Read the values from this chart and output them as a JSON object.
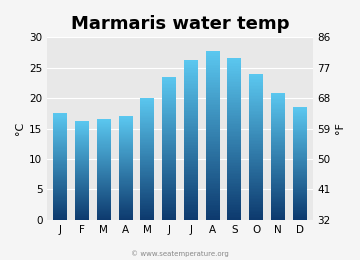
{
  "title": "Marmaris water temp",
  "months": [
    "J",
    "F",
    "M",
    "A",
    "M",
    "J",
    "J",
    "A",
    "S",
    "O",
    "N",
    "D"
  ],
  "values_c": [
    17.5,
    16.3,
    16.5,
    17.0,
    20.1,
    23.5,
    26.2,
    27.7,
    26.6,
    23.9,
    20.9,
    18.5
  ],
  "ylim_c": [
    0,
    30
  ],
  "yticks_c": [
    0,
    5,
    10,
    15,
    20,
    25,
    30
  ],
  "yticks_f": [
    32,
    41,
    50,
    59,
    68,
    77,
    86
  ],
  "ylabel_left": "°C",
  "ylabel_right": "°F",
  "bar_color_bottom": "#0d3a6e",
  "bar_color_top": "#5bc8f0",
  "bg_color": "#e8e8e8",
  "fig_bg_color": "#f5f5f5",
  "title_fontsize": 13,
  "watermark": "© www.seatemperature.org"
}
